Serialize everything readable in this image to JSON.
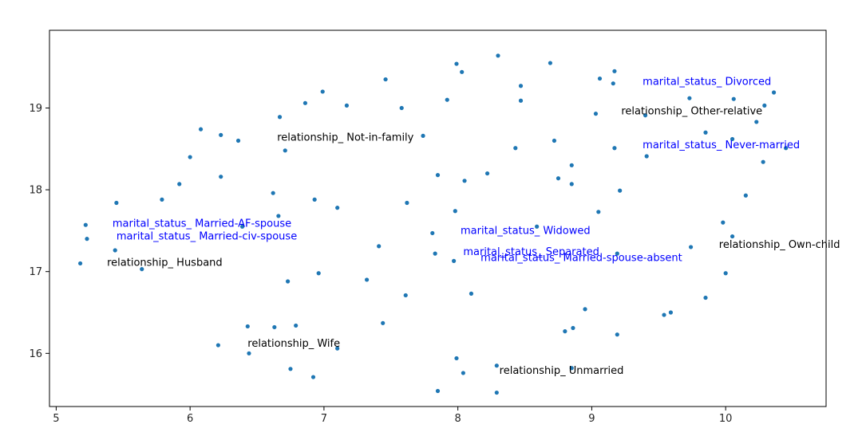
{
  "chart_data": {
    "type": "scatter",
    "title": "",
    "xlabel": "",
    "ylabel": "",
    "xlim": [
      4.95,
      10.75
    ],
    "ylim": [
      15.35,
      19.95
    ],
    "xticks": [
      5,
      6,
      7,
      8,
      9,
      10
    ],
    "yticks": [
      16,
      17,
      18,
      19
    ],
    "grid": false,
    "point_color": "#1f77b4",
    "points": [
      [
        5.22,
        17.57
      ],
      [
        5.23,
        17.4
      ],
      [
        5.18,
        17.1
      ],
      [
        5.44,
        17.26
      ],
      [
        5.45,
        17.84
      ],
      [
        5.64,
        17.03
      ],
      [
        5.79,
        17.88
      ],
      [
        5.92,
        18.07
      ],
      [
        6.0,
        18.4
      ],
      [
        6.08,
        18.74
      ],
      [
        6.23,
        18.67
      ],
      [
        6.23,
        18.16
      ],
      [
        6.36,
        18.6
      ],
      [
        6.39,
        17.55
      ],
      [
        6.62,
        17.96
      ],
      [
        6.66,
        17.68
      ],
      [
        6.67,
        18.89
      ],
      [
        6.71,
        18.48
      ],
      [
        6.73,
        16.88
      ],
      [
        6.86,
        19.06
      ],
      [
        6.93,
        17.88
      ],
      [
        6.96,
        16.98
      ],
      [
        6.99,
        19.2
      ],
      [
        7.1,
        17.78
      ],
      [
        7.17,
        19.03
      ],
      [
        6.21,
        16.1
      ],
      [
        6.43,
        16.33
      ],
      [
        6.44,
        16.0
      ],
      [
        6.63,
        16.32
      ],
      [
        6.79,
        16.34
      ],
      [
        6.75,
        15.81
      ],
      [
        6.92,
        15.71
      ],
      [
        7.1,
        16.06
      ],
      [
        7.32,
        16.9
      ],
      [
        7.41,
        17.31
      ],
      [
        7.44,
        16.37
      ],
      [
        7.46,
        19.35
      ],
      [
        7.58,
        19.0
      ],
      [
        7.61,
        16.71
      ],
      [
        7.62,
        17.84
      ],
      [
        7.74,
        18.66
      ],
      [
        7.81,
        17.47
      ],
      [
        7.83,
        17.22
      ],
      [
        7.85,
        18.18
      ],
      [
        7.92,
        19.1
      ],
      [
        7.97,
        17.13
      ],
      [
        7.98,
        17.74
      ],
      [
        7.99,
        19.54
      ],
      [
        7.99,
        15.94
      ],
      [
        8.03,
        19.44
      ],
      [
        8.04,
        15.76
      ],
      [
        8.05,
        18.11
      ],
      [
        8.1,
        16.73
      ],
      [
        8.22,
        18.2
      ],
      [
        8.3,
        19.64
      ],
      [
        8.29,
        15.52
      ],
      [
        8.29,
        15.85
      ],
      [
        7.85,
        15.54
      ],
      [
        8.43,
        18.51
      ],
      [
        8.47,
        19.27
      ],
      [
        8.47,
        19.09
      ],
      [
        8.59,
        17.55
      ],
      [
        8.69,
        19.55
      ],
      [
        8.72,
        18.6
      ],
      [
        8.75,
        18.14
      ],
      [
        8.8,
        16.27
      ],
      [
        8.85,
        18.07
      ],
      [
        8.85,
        18.3
      ],
      [
        8.86,
        16.31
      ],
      [
        8.85,
        15.82
      ],
      [
        8.95,
        16.54
      ],
      [
        9.03,
        18.93
      ],
      [
        9.05,
        17.73
      ],
      [
        9.06,
        19.36
      ],
      [
        9.16,
        19.3
      ],
      [
        9.17,
        19.45
      ],
      [
        9.17,
        18.51
      ],
      [
        9.19,
        16.23
      ],
      [
        9.21,
        17.99
      ],
      [
        9.19,
        17.22
      ],
      [
        9.4,
        18.91
      ],
      [
        9.41,
        18.41
      ],
      [
        9.54,
        16.47
      ],
      [
        9.59,
        16.5
      ],
      [
        9.73,
        19.12
      ],
      [
        9.74,
        17.3
      ],
      [
        9.85,
        18.7
      ],
      [
        9.85,
        16.68
      ],
      [
        9.98,
        17.6
      ],
      [
        10.0,
        16.98
      ],
      [
        10.05,
        17.43
      ],
      [
        10.06,
        19.11
      ],
      [
        10.15,
        17.93
      ],
      [
        10.23,
        18.83
      ],
      [
        10.28,
        18.34
      ],
      [
        10.29,
        19.03
      ],
      [
        10.36,
        19.19
      ],
      [
        10.05,
        18.62
      ],
      [
        10.45,
        18.51
      ]
    ],
    "annotations": [
      {
        "text": "relationship_ Not-in-family",
        "x": 6.65,
        "y": 18.6,
        "color": "#000000"
      },
      {
        "text": "marital_status_ Married-AF-spouse",
        "x": 5.42,
        "y": 17.55,
        "color": "#0000ff"
      },
      {
        "text": "marital_status_ Married-civ-spouse",
        "x": 5.45,
        "y": 17.39,
        "color": "#0000ff"
      },
      {
        "text": "relationship_ Husband",
        "x": 5.38,
        "y": 17.07,
        "color": "#000000"
      },
      {
        "text": "relationship_ Wife",
        "x": 6.43,
        "y": 16.08,
        "color": "#000000"
      },
      {
        "text": "marital_status_ Divorced",
        "x": 9.38,
        "y": 19.28,
        "color": "#0000ff"
      },
      {
        "text": "relationship_ Other-relative",
        "x": 9.22,
        "y": 18.92,
        "color": "#000000"
      },
      {
        "text": "marital_status_ Never-married",
        "x": 9.38,
        "y": 18.51,
        "color": "#0000ff"
      },
      {
        "text": "marital_status_ Widowed",
        "x": 8.02,
        "y": 17.46,
        "color": "#0000ff"
      },
      {
        "text": "marital_status_ Separated",
        "x": 8.04,
        "y": 17.2,
        "color": "#0000ff"
      },
      {
        "text": "marital_status_ Married-spouse-absent",
        "x": 8.17,
        "y": 17.13,
        "color": "#0000ff"
      },
      {
        "text": "relationship_ Own-child",
        "x": 9.95,
        "y": 17.29,
        "color": "#000000"
      },
      {
        "text": "relationship_ Unmarried",
        "x": 8.31,
        "y": 15.75,
        "color": "#000000"
      }
    ]
  }
}
